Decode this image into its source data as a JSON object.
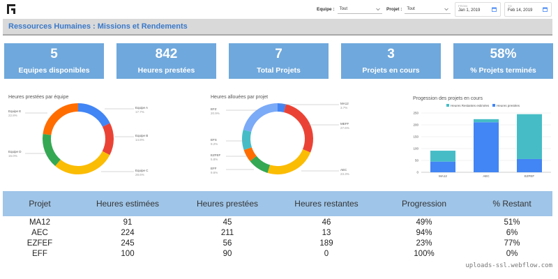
{
  "header": {
    "filters": [
      {
        "label": "Equipe :",
        "value": "Tout"
      },
      {
        "label": "Projet :",
        "value": "Tout"
      }
    ],
    "date_from": {
      "label": "FROM",
      "value": "Jan 1, 2019"
    },
    "date_to": {
      "label": "TO",
      "value": "Feb 14, 2019"
    }
  },
  "title": "Ressources Humaines : Missions et Rendements",
  "kpis": [
    {
      "value": "5",
      "label": "Equipes disponibles"
    },
    {
      "value": "842",
      "label": "Heures prestées"
    },
    {
      "value": "7",
      "label": "Total Projets"
    },
    {
      "value": "3",
      "label": "Projets en cours"
    },
    {
      "value": "58%",
      "label": "% Projets terminés"
    }
  ],
  "chart_data": [
    {
      "type": "pie",
      "title": "Heures prestées par équipe",
      "donut": true,
      "slices": [
        {
          "name": "Equipe A",
          "percent": 17.7,
          "color": "#4285f4"
        },
        {
          "name": "Equipe B",
          "percent": 14.8,
          "color": "#ea4335"
        },
        {
          "name": "Equipe C",
          "percent": 28.6,
          "color": "#fbbc04"
        },
        {
          "name": "Equipe D",
          "percent": 16.0,
          "color": "#34a853"
        },
        {
          "name": "Equipe E",
          "percent": 22.8,
          "color": "#ff6d01"
        }
      ]
    },
    {
      "type": "pie",
      "title": "Heures allouées par projet",
      "donut": true,
      "slices": [
        {
          "name": "MA12",
          "percent": 3.7,
          "color": "#4285f4"
        },
        {
          "name": "MEFF",
          "percent": 27.6,
          "color": "#ea4335"
        },
        {
          "name": "AEC",
          "percent": 23.3,
          "color": "#fbbc04"
        },
        {
          "name": "EFF",
          "percent": 9.6,
          "color": "#34a853"
        },
        {
          "name": "EZFEF",
          "percent": 5.8,
          "color": "#ff6d01"
        },
        {
          "name": "EFS",
          "percent": 9.2,
          "color": "#46bdc6"
        },
        {
          "name": "EFZ",
          "percent": 20.9,
          "color": "#7baaf7"
        }
      ]
    },
    {
      "type": "bar",
      "stacked": true,
      "title": "Progession des projets en cours",
      "categories": [
        "MA12",
        "AEC",
        "EZFEF"
      ],
      "series": [
        {
          "name": "Heures Restantes estimées",
          "values": [
            46,
            13,
            189
          ],
          "color": "#46bdc6"
        },
        {
          "name": "Heures prestées",
          "values": [
            45,
            211,
            56
          ],
          "color": "#4285f4"
        }
      ],
      "yticks": [
        0,
        50,
        100,
        150,
        200,
        250
      ],
      "ylim": [
        0,
        250
      ],
      "legend": "top",
      "grid": true
    }
  ],
  "table": {
    "headers": [
      "Projet",
      "Heures estimées",
      "Heures prestées",
      "Heures restantes",
      "Progression",
      "% Restant"
    ],
    "rows": [
      [
        "MA12",
        "91",
        "45",
        "46",
        "49%",
        "51%"
      ],
      [
        "AEC",
        "224",
        "211",
        "13",
        "94%",
        "6%"
      ],
      [
        "EZFEF",
        "245",
        "56",
        "189",
        "23%",
        "77%"
      ],
      [
        "EFF",
        "100",
        "90",
        "0",
        "100%",
        "0%"
      ]
    ]
  },
  "source": "uploads-ssl.webflow.com"
}
